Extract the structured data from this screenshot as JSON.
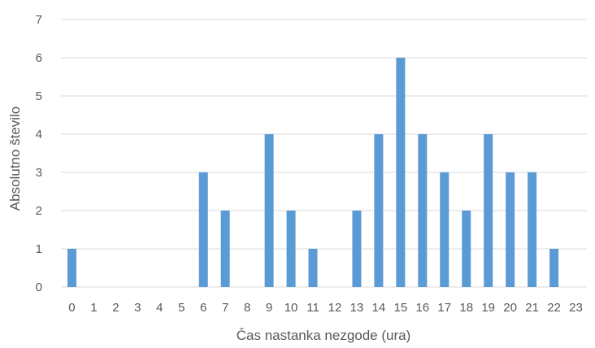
{
  "chart_data": {
    "type": "bar",
    "title": "",
    "xlabel": "Čas nastanka nezgode (ura)",
    "ylabel": "Absolutno število",
    "categories": [
      "0",
      "1",
      "2",
      "3",
      "4",
      "5",
      "6",
      "7",
      "8",
      "9",
      "10",
      "11",
      "12",
      "13",
      "14",
      "15",
      "16",
      "17",
      "18",
      "19",
      "20",
      "21",
      "22",
      "23"
    ],
    "values": [
      1,
      0,
      0,
      0,
      0,
      0,
      3,
      2,
      0,
      4,
      2,
      1,
      0,
      2,
      4,
      6,
      4,
      3,
      2,
      4,
      3,
      3,
      1,
      0
    ],
    "ylim": [
      0,
      7
    ],
    "yticks": [
      "0",
      "1",
      "2",
      "3",
      "4",
      "5",
      "6",
      "7"
    ],
    "grid": true,
    "legend": "none",
    "bar_color": "#5b9bd5",
    "grid_color": "#d9d9d9"
  }
}
